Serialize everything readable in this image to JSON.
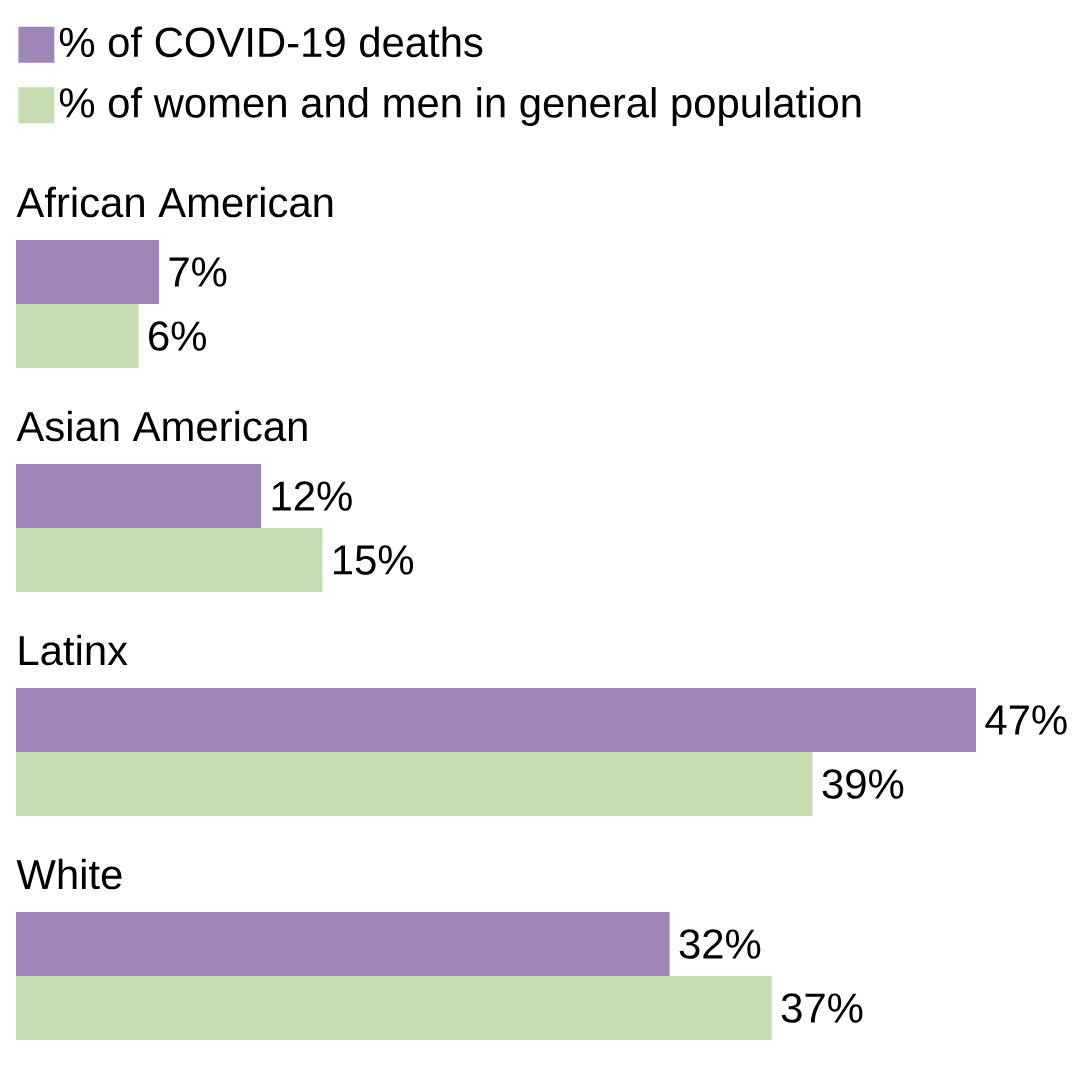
{
  "chart_data": {
    "type": "bar",
    "orientation": "horizontal",
    "categories": [
      "African American",
      "Asian American",
      "Latinx",
      "White"
    ],
    "legend": "top left",
    "series": [
      {
        "name": "% of COVID-19 deaths",
        "color": "#9d85b8",
        "values": [
          7,
          12,
          47,
          32
        ],
        "value_labels": [
          "7%",
          "12%",
          "47%",
          "32%"
        ]
      },
      {
        "name": "% of women and men in general population",
        "color": "#c6dcb1",
        "values": [
          6,
          15,
          39,
          37
        ],
        "value_labels": [
          "6%",
          "15%",
          "39%",
          "37%"
        ]
      }
    ]
  }
}
